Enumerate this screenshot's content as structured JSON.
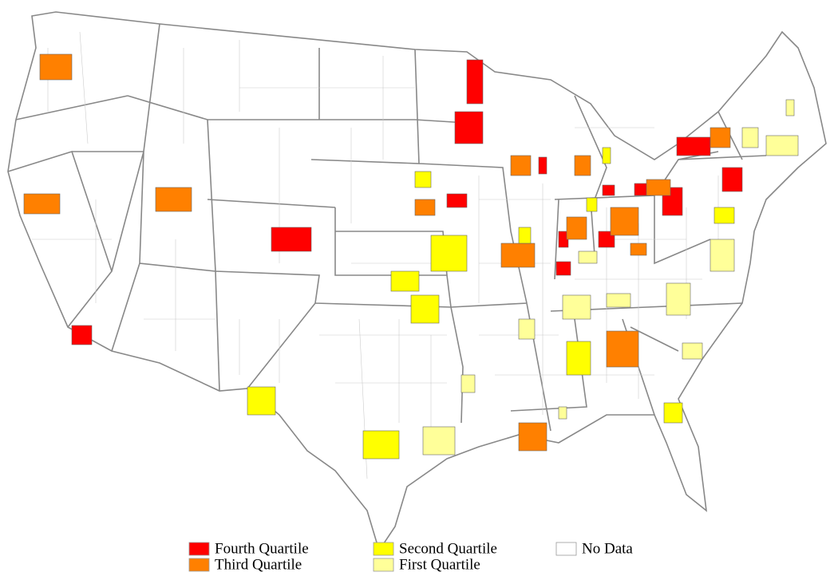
{
  "legend": {
    "items": [
      {
        "label": "Fourth Quartile",
        "color": "#ff0000"
      },
      {
        "label": "Third Quartile",
        "color": "#ff8000"
      },
      {
        "label": "Second Quartile",
        "color": "#ffff00"
      },
      {
        "label": "First Quartile",
        "color": "#ffff99"
      },
      {
        "label": "No Data",
        "color": "#ffffff"
      }
    ]
  }
}
